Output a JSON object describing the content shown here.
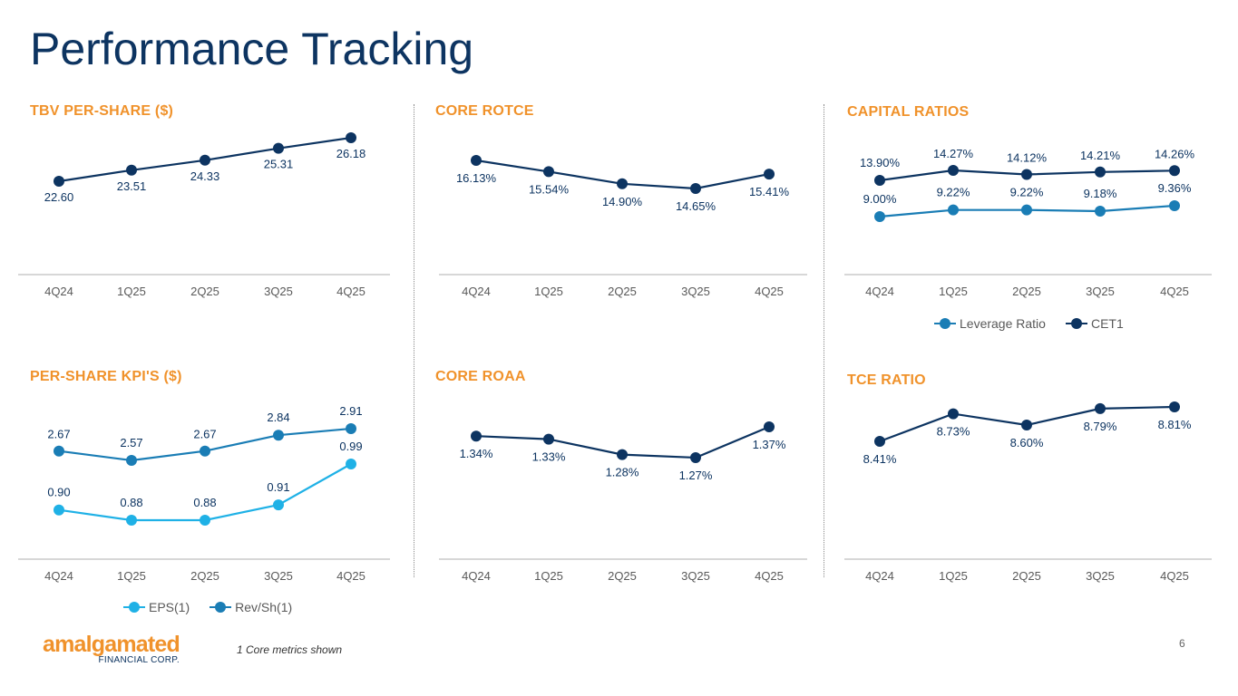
{
  "page": {
    "title": "Performance Tracking",
    "page_number": "6",
    "footnote": "1 Core metrics shown"
  },
  "logo": {
    "name": "amalgamated",
    "subtitle": "FINANCIAL CORP."
  },
  "colors": {
    "navy": "#0d3461",
    "teal": "#1a7db5",
    "light_blue": "#1fb1e6",
    "orange": "#f0922b"
  },
  "chart_data": [
    {
      "id": "tbv",
      "type": "line",
      "title": "TBV PER-SHARE ($)",
      "categories": [
        "4Q24",
        "1Q25",
        "2Q25",
        "3Q25",
        "4Q25"
      ],
      "series": [
        {
          "name": "TBV per share",
          "color": "#0d3461",
          "values": [
            22.6,
            23.51,
            24.33,
            25.31,
            26.18
          ],
          "labels": [
            "22.60",
            "23.51",
            "24.33",
            "25.31",
            "26.18"
          ]
        }
      ]
    },
    {
      "id": "rotce",
      "type": "line",
      "title": "CORE ROTCE",
      "categories": [
        "4Q24",
        "1Q25",
        "2Q25",
        "3Q25",
        "4Q25"
      ],
      "series": [
        {
          "name": "Core ROTCE",
          "color": "#0d3461",
          "values": [
            16.13,
            15.54,
            14.9,
            14.65,
            15.41
          ],
          "labels": [
            "16.13%",
            "15.54%",
            "14.90%",
            "14.65%",
            "15.41%"
          ]
        }
      ]
    },
    {
      "id": "capital",
      "type": "line",
      "title": "CAPITAL RATIOS",
      "categories": [
        "4Q24",
        "1Q25",
        "2Q25",
        "3Q25",
        "4Q25"
      ],
      "series": [
        {
          "name": "CET1",
          "color": "#0d3461",
          "values": [
            13.9,
            14.27,
            14.12,
            14.21,
            14.26
          ],
          "labels": [
            "13.90%",
            "14.27%",
            "14.12%",
            "14.21%",
            "14.26%"
          ]
        },
        {
          "name": "Leverage Ratio",
          "color": "#1a7db5",
          "values": [
            9.0,
            9.22,
            9.22,
            9.18,
            9.36
          ],
          "labels": [
            "9.00%",
            "9.22%",
            "9.22%",
            "9.18%",
            "9.36%"
          ]
        }
      ],
      "legend": [
        "Leverage Ratio",
        "CET1"
      ]
    },
    {
      "id": "kpi",
      "type": "line",
      "title": "PER-SHARE KPI'S ($)",
      "categories": [
        "4Q24",
        "1Q25",
        "2Q25",
        "3Q25",
        "4Q25"
      ],
      "series": [
        {
          "name": "Rev/Sh(1)",
          "color": "#1a7db5",
          "values": [
            2.67,
            2.57,
            2.67,
            2.84,
            2.91
          ],
          "labels": [
            "2.67",
            "2.57",
            "2.67",
            "2.84",
            "2.91"
          ]
        },
        {
          "name": "EPS(1)",
          "color": "#1fb1e6",
          "values": [
            0.9,
            0.88,
            0.88,
            0.91,
            0.99
          ],
          "labels": [
            "0.90",
            "0.88",
            "0.88",
            "0.91",
            "0.99"
          ]
        }
      ],
      "legend": [
        "EPS(1)",
        "Rev/Sh(1)"
      ]
    },
    {
      "id": "roaa",
      "type": "line",
      "title": "CORE ROAA",
      "categories": [
        "4Q24",
        "1Q25",
        "2Q25",
        "3Q25",
        "4Q25"
      ],
      "series": [
        {
          "name": "Core ROAA",
          "color": "#0d3461",
          "values": [
            1.34,
            1.33,
            1.28,
            1.27,
            1.37
          ],
          "labels": [
            "1.34%",
            "1.33%",
            "1.28%",
            "1.27%",
            "1.37%"
          ]
        }
      ]
    },
    {
      "id": "tce",
      "type": "line",
      "title": "TCE RATIO",
      "categories": [
        "4Q24",
        "1Q25",
        "2Q25",
        "3Q25",
        "4Q25"
      ],
      "series": [
        {
          "name": "TCE Ratio",
          "color": "#0d3461",
          "values": [
            8.41,
            8.73,
            8.6,
            8.79,
            8.81
          ],
          "labels": [
            "8.41%",
            "8.73%",
            "8.60%",
            "8.79%",
            "8.81%"
          ]
        }
      ]
    }
  ]
}
